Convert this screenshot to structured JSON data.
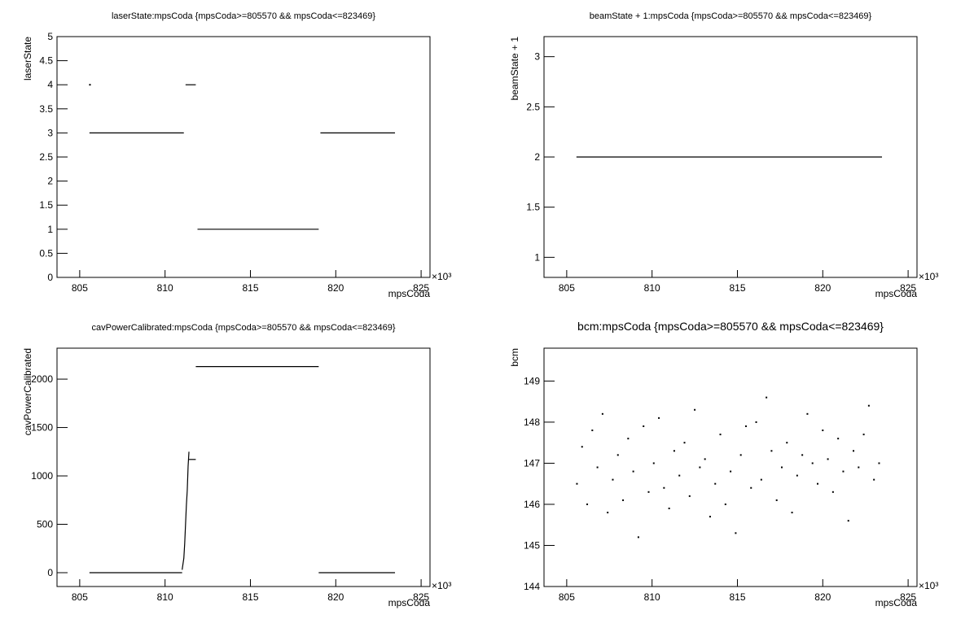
{
  "chart_data": [
    {
      "type": "line",
      "title": "laserState:mpsCoda {mpsCoda>=805570 && mpsCoda<=823469}",
      "ylabel": "laserState",
      "xlabel": "mpsCoda",
      "x_multiplier": "×10³",
      "x": [
        805.6,
        null,
        805.57,
        811.1,
        null,
        811.2,
        811.8,
        null,
        811.9,
        819.0,
        null,
        819.1,
        823.47
      ],
      "values": [
        4,
        null,
        3,
        3,
        null,
        4,
        4,
        null,
        1,
        1,
        null,
        3,
        3
      ],
      "color": "#000000",
      "xlim": [
        803.67,
        825.52
      ],
      "ylim": [
        0,
        5
      ],
      "xticks": [
        805,
        810,
        815,
        820,
        825
      ],
      "yticks": [
        0,
        0.5,
        1,
        1.5,
        2,
        2.5,
        3,
        3.5,
        4,
        4.5,
        5
      ]
    },
    {
      "type": "line",
      "title": "beamState + 1:mpsCoda {mpsCoda>=805570 && mpsCoda<=823469}",
      "ylabel": "beamState + 1",
      "xlabel": "mpsCoda",
      "x_multiplier": "×10³",
      "x": [
        805.57,
        823.47
      ],
      "values": [
        2,
        2
      ],
      "color": "#000000",
      "xlim": [
        803.67,
        825.52
      ],
      "ylim": [
        0.8,
        3.2
      ],
      "xticks": [
        805,
        810,
        815,
        820,
        825
      ],
      "yticks": [
        1,
        1.5,
        2,
        2.5,
        3
      ]
    },
    {
      "type": "line",
      "title": "cavPowerCalibrated:mpsCoda {mpsCoda>=805570 && mpsCoda<=823469}",
      "ylabel": "cavPowerCalibrated",
      "xlabel": "mpsCoda",
      "x_multiplier": "×10³",
      "x": [
        805.57,
        811.0,
        null,
        811.0,
        811.1,
        811.15,
        811.2,
        811.25,
        811.3,
        811.35,
        811.4,
        null,
        811.4,
        811.8,
        null,
        811.8,
        819.0,
        null,
        819.0,
        823.47
      ],
      "values": [
        0,
        0,
        null,
        30,
        150,
        300,
        500,
        700,
        850,
        1100,
        1250,
        null,
        1170,
        1170,
        null,
        2130,
        2130,
        null,
        0,
        0
      ],
      "color": "#000000",
      "xlim": [
        803.67,
        825.52
      ],
      "ylim": [
        -143,
        2320
      ],
      "xticks": [
        805,
        810,
        815,
        820,
        825
      ],
      "yticks": [
        0,
        500,
        1000,
        1500,
        2000
      ]
    },
    {
      "type": "scatter",
      "title": "bcm:mpsCoda {mpsCoda>=805570 && mpsCoda<=823469}",
      "ylabel": "bcm",
      "xlabel": "mpsCoda",
      "x_multiplier": "×10³",
      "x": [
        805.6,
        805.9,
        806.2,
        806.5,
        806.8,
        807.1,
        807.4,
        807.7,
        808.0,
        808.3,
        808.6,
        808.9,
        809.2,
        809.5,
        809.8,
        810.1,
        810.4,
        810.7,
        811.0,
        811.3,
        811.6,
        811.9,
        812.2,
        812.5,
        812.8,
        813.1,
        813.4,
        813.7,
        814.0,
        814.3,
        814.6,
        814.9,
        815.2,
        815.5,
        815.8,
        816.1,
        816.4,
        816.7,
        817.0,
        817.3,
        817.6,
        817.9,
        818.2,
        818.5,
        818.8,
        819.1,
        819.4,
        819.7,
        820.0,
        820.3,
        820.6,
        820.9,
        821.2,
        821.5,
        821.8,
        822.1,
        822.4,
        822.7,
        823.0,
        823.3
      ],
      "values": [
        146.5,
        147.4,
        146.0,
        147.8,
        146.9,
        148.2,
        145.8,
        146.6,
        147.2,
        146.1,
        147.6,
        146.8,
        145.2,
        147.9,
        146.3,
        147.0,
        148.1,
        146.4,
        145.9,
        147.3,
        146.7,
        147.5,
        146.2,
        148.3,
        146.9,
        147.1,
        145.7,
        146.5,
        147.7,
        146.0,
        146.8,
        145.3,
        147.2,
        147.9,
        146.4,
        148.0,
        146.6,
        148.6,
        147.3,
        146.1,
        146.9,
        147.5,
        145.8,
        146.7,
        147.2,
        148.2,
        147.0,
        146.5,
        147.8,
        147.1,
        146.3,
        147.6,
        146.8,
        145.6,
        147.3,
        146.9,
        147.7,
        148.4,
        146.6,
        147.0
      ],
      "color": "#000000",
      "xlim": [
        803.67,
        825.52
      ],
      "ylim": [
        144,
        149.8
      ],
      "xticks": [
        805,
        810,
        815,
        820,
        825
      ],
      "yticks": [
        144,
        145,
        146,
        147,
        148,
        149
      ]
    }
  ]
}
